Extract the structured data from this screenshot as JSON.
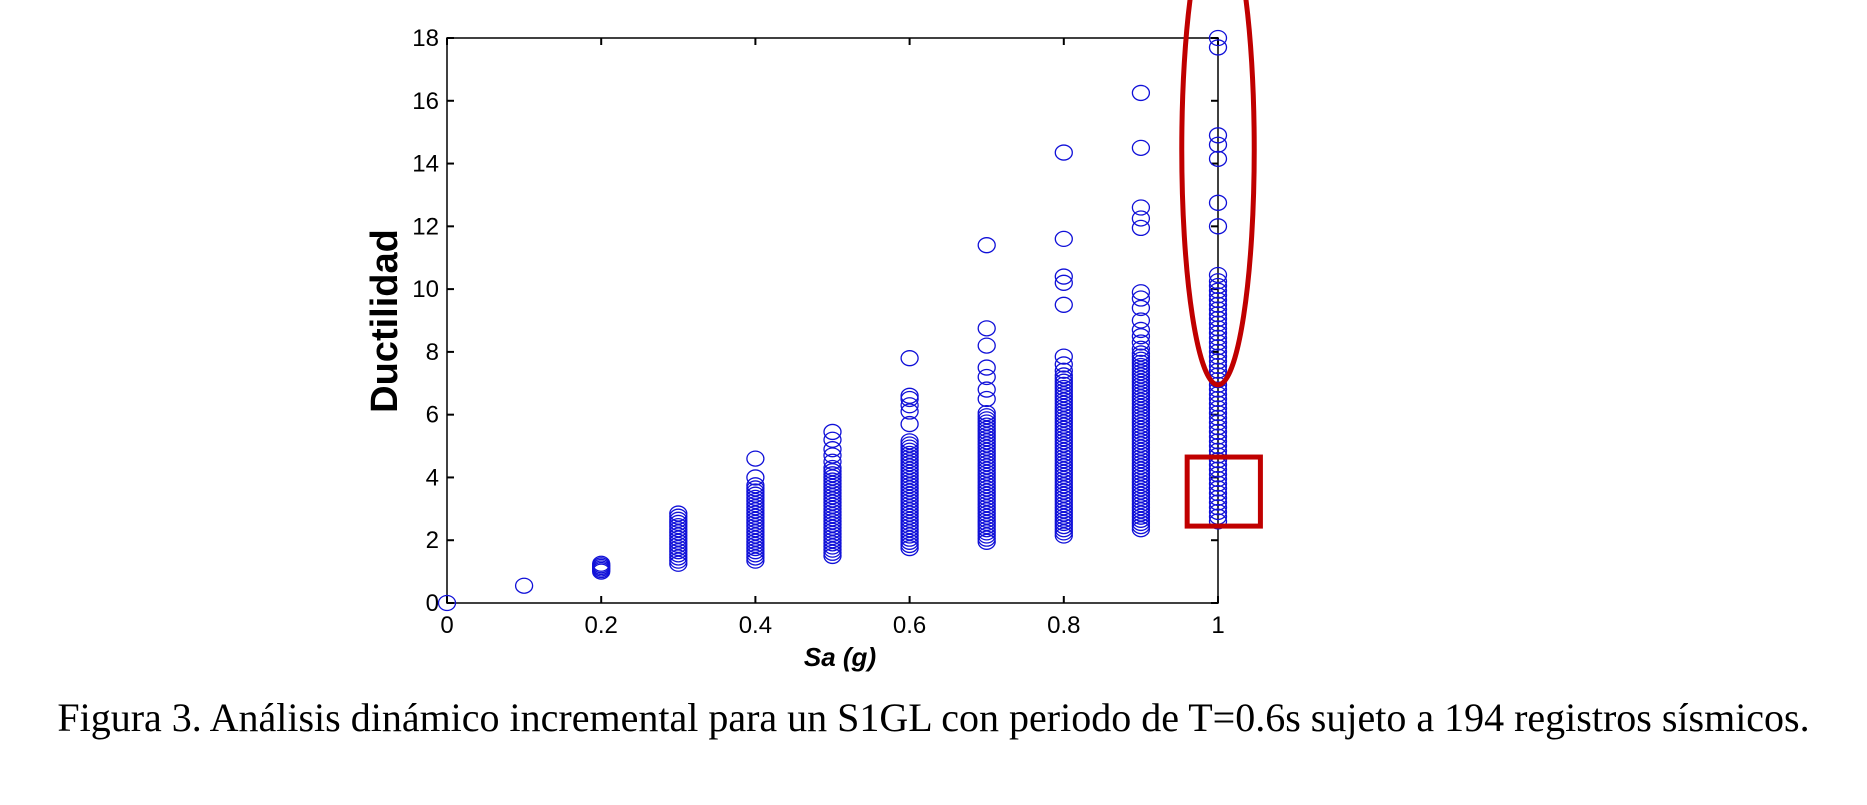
{
  "caption": "Figura 3. Análisis dinámico incremental para un S1GL con periodo de T=0.6s sujeto a 194 registros sísmicos.",
  "chart_data": {
    "type": "scatter",
    "xlabel": "Sa (g)",
    "ylabel": "Ductilidad",
    "xlim": [
      0,
      1
    ],
    "ylim": [
      0,
      18
    ],
    "xticks": [
      0,
      0.2,
      0.4,
      0.6,
      0.8,
      1
    ],
    "xtick_labels": [
      "0",
      "0.2",
      "0.4",
      "0.6",
      "0.8",
      "1"
    ],
    "yticks": [
      0,
      2,
      4,
      6,
      8,
      10,
      12,
      14,
      16,
      18
    ],
    "ytick_labels": [
      "0",
      "2",
      "4",
      "6",
      "8",
      "10",
      "12",
      "14",
      "16",
      "18"
    ],
    "grid": false,
    "marker": "open-circle",
    "marker_color": "#1010d8",
    "annotation_color": "#c00000",
    "points": [
      {
        "x": 0.0,
        "y": [
          0.0
        ]
      },
      {
        "x": 0.1,
        "y": [
          0.55
        ]
      },
      {
        "x": 0.2,
        "y": [
          1.0,
          1.05,
          1.1,
          1.15,
          1.2,
          1.25
        ]
      },
      {
        "x": 0.3,
        "y": [
          1.25,
          1.35,
          1.45,
          1.55,
          1.65,
          1.75,
          1.85,
          1.95,
          2.05,
          2.15,
          2.25,
          2.35,
          2.45,
          2.55,
          2.65,
          2.75,
          2.85
        ]
      },
      {
        "x": 0.4,
        "y": [
          1.35,
          1.45,
          1.55,
          1.65,
          1.75,
          1.85,
          1.95,
          2.05,
          2.15,
          2.25,
          2.35,
          2.45,
          2.55,
          2.65,
          2.75,
          2.85,
          2.95,
          3.05,
          3.15,
          3.25,
          3.35,
          3.45,
          3.55,
          3.65,
          3.75,
          4.0,
          4.6
        ]
      },
      {
        "x": 0.5,
        "y": [
          1.5,
          1.6,
          1.7,
          1.8,
          1.9,
          2.0,
          2.1,
          2.2,
          2.3,
          2.4,
          2.5,
          2.6,
          2.7,
          2.8,
          2.9,
          3.0,
          3.1,
          3.2,
          3.3,
          3.4,
          3.5,
          3.6,
          3.7,
          3.8,
          3.9,
          4.0,
          4.1,
          4.2,
          4.3,
          4.5,
          4.7,
          4.9,
          5.2,
          5.45
        ]
      },
      {
        "x": 0.6,
        "y": [
          1.75,
          1.85,
          1.95,
          2.05,
          2.15,
          2.25,
          2.35,
          2.45,
          2.55,
          2.65,
          2.75,
          2.85,
          2.95,
          3.05,
          3.15,
          3.25,
          3.35,
          3.45,
          3.55,
          3.65,
          3.75,
          3.85,
          3.95,
          4.05,
          4.15,
          4.25,
          4.35,
          4.45,
          4.55,
          4.65,
          4.75,
          4.85,
          4.95,
          5.05,
          5.15,
          5.7,
          6.1,
          6.3,
          6.5,
          6.6,
          7.8
        ]
      },
      {
        "x": 0.7,
        "y": [
          1.95,
          2.05,
          2.15,
          2.25,
          2.35,
          2.45,
          2.55,
          2.65,
          2.75,
          2.85,
          2.95,
          3.05,
          3.15,
          3.25,
          3.35,
          3.45,
          3.55,
          3.65,
          3.75,
          3.85,
          3.95,
          4.05,
          4.15,
          4.25,
          4.35,
          4.45,
          4.55,
          4.65,
          4.75,
          4.85,
          4.95,
          5.05,
          5.15,
          5.25,
          5.35,
          5.45,
          5.55,
          5.65,
          5.75,
          5.85,
          5.95,
          6.05,
          6.5,
          6.8,
          7.2,
          7.5,
          8.2,
          8.75,
          11.4
        ]
      },
      {
        "x": 0.8,
        "y": [
          2.15,
          2.25,
          2.35,
          2.45,
          2.55,
          2.65,
          2.75,
          2.85,
          2.95,
          3.05,
          3.15,
          3.25,
          3.35,
          3.45,
          3.55,
          3.65,
          3.75,
          3.85,
          3.95,
          4.05,
          4.15,
          4.25,
          4.35,
          4.45,
          4.55,
          4.65,
          4.75,
          4.85,
          4.95,
          5.05,
          5.15,
          5.25,
          5.35,
          5.45,
          5.55,
          5.65,
          5.75,
          5.85,
          5.95,
          6.05,
          6.15,
          6.25,
          6.35,
          6.45,
          6.55,
          6.65,
          6.75,
          6.85,
          6.95,
          7.05,
          7.15,
          7.25,
          7.4,
          7.6,
          7.85,
          9.5,
          10.2,
          10.4,
          11.6,
          14.35
        ]
      },
      {
        "x": 0.9,
        "y": [
          2.35,
          2.45,
          2.55,
          2.65,
          2.75,
          2.85,
          2.95,
          3.05,
          3.15,
          3.25,
          3.35,
          3.45,
          3.55,
          3.65,
          3.75,
          3.85,
          3.95,
          4.05,
          4.15,
          4.25,
          4.35,
          4.45,
          4.55,
          4.65,
          4.75,
          4.85,
          4.95,
          5.05,
          5.15,
          5.25,
          5.35,
          5.45,
          5.55,
          5.65,
          5.75,
          5.85,
          5.95,
          6.05,
          6.15,
          6.25,
          6.35,
          6.45,
          6.55,
          6.65,
          6.75,
          6.85,
          6.95,
          7.05,
          7.15,
          7.25,
          7.35,
          7.45,
          7.55,
          7.65,
          7.75,
          7.85,
          7.95,
          8.1,
          8.3,
          8.5,
          8.7,
          9.0,
          9.4,
          9.7,
          9.9,
          11.95,
          12.25,
          12.6,
          14.5,
          16.25
        ]
      },
      {
        "x": 1.0,
        "y": [
          2.6,
          2.75,
          2.9,
          3.05,
          3.2,
          3.35,
          3.5,
          3.65,
          3.8,
          3.95,
          4.1,
          4.25,
          4.4,
          4.55,
          4.7,
          4.85,
          5.0,
          5.15,
          5.3,
          5.45,
          5.6,
          5.75,
          5.9,
          6.05,
          6.2,
          6.35,
          6.5,
          6.65,
          6.8,
          6.95,
          7.1,
          7.25,
          7.4,
          7.55,
          7.7,
          7.85,
          8.0,
          8.15,
          8.3,
          8.45,
          8.6,
          8.75,
          8.9,
          9.05,
          9.2,
          9.35,
          9.5,
          9.65,
          9.8,
          9.95,
          10.1,
          10.25,
          10.45,
          12.0,
          12.75,
          14.15,
          14.6,
          14.9,
          17.7,
          18.0
        ]
      }
    ],
    "annotations": [
      {
        "shape": "ellipse",
        "cx": 1.0,
        "cy": 14.45,
        "rx": 0.047,
        "ry": 7.5
      },
      {
        "shape": "rect",
        "x0": 0.96,
        "x1": 1.055,
        "y0": 2.45,
        "y1": 4.65
      }
    ]
  }
}
